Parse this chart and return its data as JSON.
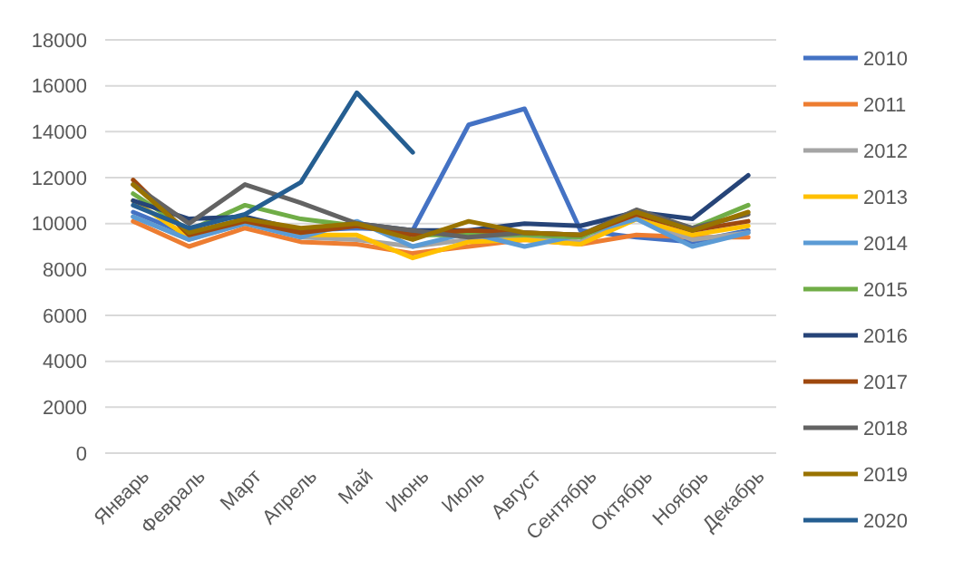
{
  "chart_data": {
    "type": "line",
    "categories": [
      "Январь",
      "Февраль",
      "Март",
      "Апрель",
      "Май",
      "Июнь",
      "Июль",
      "Август",
      "Сентябрь",
      "Октябрь",
      "Ноябрь",
      "Декабрь"
    ],
    "ylim": [
      0,
      18000
    ],
    "yticks": [
      0,
      2000,
      4000,
      6000,
      8000,
      10000,
      12000,
      14000,
      16000,
      18000
    ],
    "grid": "y",
    "legend": "right",
    "marker": "none",
    "line_style": "solid",
    "series": [
      {
        "name": "2010",
        "color": "#4472c4",
        "values": [
          10500,
          9500,
          10000,
          9700,
          9800,
          9700,
          14300,
          15000,
          9700,
          9400,
          9200,
          9700
        ]
      },
      {
        "name": "2011",
        "color": "#ed7d31",
        "values": [
          10100,
          9000,
          9800,
          9200,
          9100,
          8700,
          9000,
          9300,
          9100,
          9500,
          9400,
          9400
        ]
      },
      {
        "name": "2012",
        "color": "#a5a5a5",
        "values": [
          10300,
          9300,
          10000,
          9400,
          9300,
          9000,
          9300,
          9400,
          9200,
          10200,
          9300,
          9600
        ]
      },
      {
        "name": "2013",
        "color": "#ffc000",
        "values": [
          11000,
          9400,
          10000,
          9500,
          9500,
          8500,
          9200,
          9300,
          9100,
          10200,
          9500,
          9900
        ]
      },
      {
        "name": "2014",
        "color": "#5b9bd5",
        "values": [
          10300,
          9300,
          10000,
          9400,
          10100,
          9000,
          9600,
          9000,
          9500,
          10200,
          9000,
          9600
        ]
      },
      {
        "name": "2015",
        "color": "#70ad47",
        "values": [
          11300,
          9700,
          10800,
          10200,
          9900,
          9500,
          9500,
          9500,
          9400,
          10500,
          9800,
          10800
        ]
      },
      {
        "name": "2016",
        "color": "#264478",
        "values": [
          11000,
          10200,
          10300,
          9700,
          10000,
          9700,
          9700,
          10000,
          9900,
          10500,
          10200,
          12100
        ]
      },
      {
        "name": "2017",
        "color": "#9e480e",
        "values": [
          11900,
          9500,
          10100,
          9600,
          9900,
          9500,
          9700,
          9600,
          9500,
          10400,
          9700,
          10100
        ]
      },
      {
        "name": "2018",
        "color": "#636363",
        "values": [
          11700,
          10000,
          11700,
          10900,
          10000,
          9700,
          9400,
          9600,
          9500,
          10600,
          9800,
          10400
        ]
      },
      {
        "name": "2019",
        "color": "#997300",
        "values": [
          11700,
          9600,
          10200,
          9800,
          10000,
          9300,
          10100,
          9600,
          9500,
          10500,
          9700,
          10500
        ]
      },
      {
        "name": "2020",
        "color": "#255e91",
        "values": [
          10800,
          9800,
          10400,
          11800,
          15700,
          13100,
          null,
          null,
          null,
          null,
          null,
          null
        ]
      }
    ]
  }
}
